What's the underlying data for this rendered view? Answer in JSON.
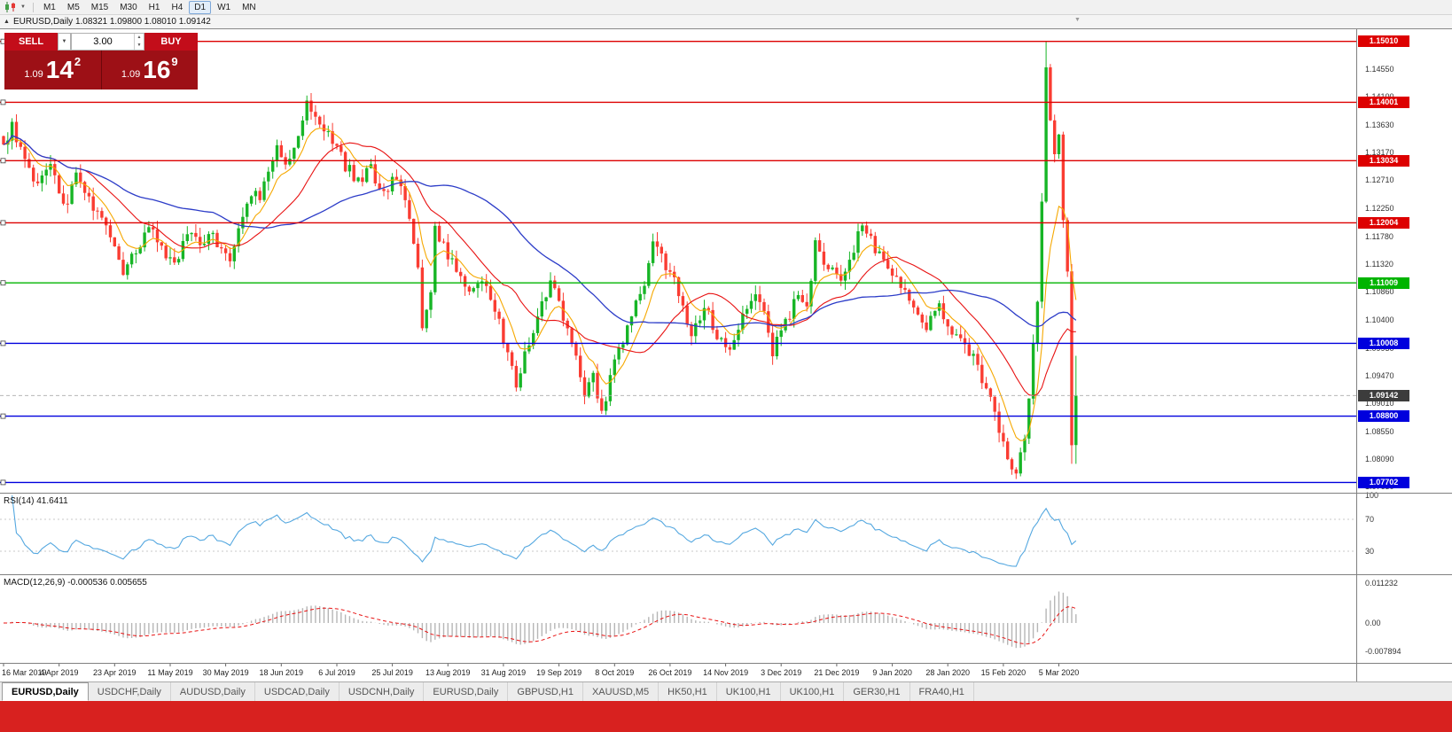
{
  "toolbar": {
    "timeframes": [
      {
        "label": "M1",
        "active": false
      },
      {
        "label": "M5",
        "active": false
      },
      {
        "label": "M15",
        "active": false
      },
      {
        "label": "M30",
        "active": false
      },
      {
        "label": "H1",
        "active": false
      },
      {
        "label": "H4",
        "active": false
      },
      {
        "label": "D1",
        "active": true
      },
      {
        "label": "W1",
        "active": false
      },
      {
        "label": "MN",
        "active": false
      }
    ]
  },
  "window_title": "EURUSD,Daily 1.08321 1.09800 1.08010 1.09142",
  "trade_panel": {
    "sell_label": "SELL",
    "buy_label": "BUY",
    "volume": "3.00",
    "sell_price_prefix": "1.09",
    "sell_price_big": "14",
    "sell_price_sup": "2",
    "buy_price_prefix": "1.09",
    "buy_price_big": "16",
    "buy_price_sup": "9",
    "panel_color": "#9d1016",
    "button_color": "#c30d1a"
  },
  "chart_data": {
    "type": "candlestick",
    "symbol": "EURUSD",
    "timeframe": "Daily",
    "ohlc": {
      "open": "1.08321",
      "high": "1.09800",
      "low": "1.08010",
      "close": "1.09142"
    },
    "price_axis": {
      "top": 1.15211,
      "bottom": 1.07532,
      "ticks": [
        "1.14550",
        "1.14100",
        "1.13630",
        "1.13170",
        "1.12710",
        "1.12250",
        "1.11780",
        "1.11320",
        "1.10860",
        "1.10400",
        "1.09930",
        "1.09470",
        "1.09010",
        "1.08550",
        "1.08090",
        "1.07630"
      ]
    },
    "hlines": [
      {
        "price": 1.1501,
        "label": "1.15010",
        "color": "#dd0000"
      },
      {
        "price": 1.14001,
        "label": "1.14001",
        "color": "#dd0000"
      },
      {
        "price": 1.13034,
        "label": "1.13034",
        "color": "#dd0000"
      },
      {
        "price": 1.12004,
        "label": "1.12004",
        "color": "#dd0000"
      },
      {
        "price": 1.11009,
        "label": "1.11009",
        "color": "#00b400"
      },
      {
        "price": 1.10008,
        "label": "1.10008",
        "color": "#0000dd"
      },
      {
        "price": 1.088,
        "label": "1.08800",
        "color": "#0000dd"
      },
      {
        "price": 1.07702,
        "label": "1.07702",
        "color": "#0000dd"
      }
    ],
    "bid_line": {
      "price": 1.09142,
      "label": "1.09142",
      "color": "#3c3c3c"
    },
    "candle_count": 252,
    "close_waypoints": [
      [
        0,
        1.133
      ],
      [
        2,
        1.1358
      ],
      [
        5,
        1.13
      ],
      [
        8,
        1.1262
      ],
      [
        11,
        1.1295
      ],
      [
        14,
        1.1222
      ],
      [
        17,
        1.128
      ],
      [
        20,
        1.1245
      ],
      [
        23,
        1.12
      ],
      [
        26,
        1.116
      ],
      [
        28,
        1.112
      ],
      [
        31,
        1.1152
      ],
      [
        34,
        1.1192
      ],
      [
        37,
        1.1158
      ],
      [
        40,
        1.1136
      ],
      [
        43,
        1.118
      ],
      [
        46,
        1.116
      ],
      [
        49,
        1.118
      ],
      [
        53,
        1.1135
      ],
      [
        56,
        1.1205
      ],
      [
        58,
        1.1255
      ],
      [
        60,
        1.1235
      ],
      [
        62,
        1.129
      ],
      [
        64,
        1.1335
      ],
      [
        66,
        1.1295
      ],
      [
        69,
        1.134
      ],
      [
        71,
        1.1395
      ],
      [
        74,
        1.137
      ],
      [
        77,
        1.1335
      ],
      [
        80,
        1.1295
      ],
      [
        83,
        1.127
      ],
      [
        86,
        1.1288
      ],
      [
        89,
        1.1245
      ],
      [
        92,
        1.1278
      ],
      [
        95,
        1.1215
      ],
      [
        97,
        1.112
      ],
      [
        98,
        1.1035
      ],
      [
        100,
        1.108
      ],
      [
        101,
        1.1185
      ],
      [
        103,
        1.116
      ],
      [
        106,
        1.1125
      ],
      [
        109,
        1.1092
      ],
      [
        112,
        1.1108
      ],
      [
        115,
        1.1052
      ],
      [
        118,
        1.099
      ],
      [
        120,
        1.0928
      ],
      [
        122,
        1.0985
      ],
      [
        125,
        1.104
      ],
      [
        128,
        1.1105
      ],
      [
        131,
        1.1042
      ],
      [
        134,
        1.099
      ],
      [
        136,
        1.092
      ],
      [
        138,
        1.095
      ],
      [
        140,
        1.0885
      ],
      [
        142,
        1.0945
      ],
      [
        145,
        1.1005
      ],
      [
        148,
        1.1062
      ],
      [
        150,
        1.1102
      ],
      [
        152,
        1.1162
      ],
      [
        155,
        1.113
      ],
      [
        158,
        1.1085
      ],
      [
        161,
        1.1012
      ],
      [
        164,
        1.1062
      ],
      [
        167,
        1.1015
      ],
      [
        170,
        1.0992
      ],
      [
        173,
        1.1042
      ],
      [
        176,
        1.1078
      ],
      [
        178,
        1.1062
      ],
      [
        180,
        1.0988
      ],
      [
        183,
        1.1035
      ],
      [
        186,
        1.1078
      ],
      [
        188,
        1.1058
      ],
      [
        190,
        1.1168
      ],
      [
        193,
        1.1128
      ],
      [
        196,
        1.1112
      ],
      [
        199,
        1.115
      ],
      [
        201,
        1.1205
      ],
      [
        204,
        1.116
      ],
      [
        207,
        1.112
      ],
      [
        210,
        1.1092
      ],
      [
        213,
        1.106
      ],
      [
        216,
        1.1032
      ],
      [
        219,
        1.106
      ],
      [
        221,
        1.1022
      ],
      [
        224,
        1.1
      ],
      [
        227,
        1.098
      ],
      [
        230,
        1.0925
      ],
      [
        233,
        1.0862
      ],
      [
        235,
        1.081
      ],
      [
        237,
        1.0786
      ],
      [
        239,
        1.0845
      ],
      [
        240,
        1.0912
      ],
      [
        241,
        1.099
      ],
      [
        242,
        1.108
      ],
      [
        243,
        1.124
      ],
      [
        244,
        1.146
      ],
      [
        245,
        1.138
      ],
      [
        246,
        1.131
      ],
      [
        247,
        1.1345
      ],
      [
        248,
        1.1195
      ],
      [
        249,
        1.113
      ],
      [
        250,
        1.112
      ],
      [
        251,
        1.0914
      ]
    ],
    "last_two_candles": [
      {
        "o": 1.112,
        "h": 1.1132,
        "l": 1.0801,
        "c": 1.0832
      },
      {
        "o": 1.08321,
        "h": 1.098,
        "l": 1.0801,
        "c": 1.09142
      }
    ],
    "spike_high": 1.1501,
    "colors": {
      "up": "#17b526",
      "down": "#fa3c32",
      "ma_fast": "#f6a800",
      "ma_mid": "#e81212",
      "ma_slow": "#2c3cc8"
    },
    "ma_periods": {
      "fast": 8,
      "mid": 20,
      "slow": 50
    },
    "x_labels": [
      "16 Mar 2019",
      "4 Apr 2019",
      "23 Apr 2019",
      "11 May 2019",
      "30 May 2019",
      "18 Jun 2019",
      "6 Jul 2019",
      "25 Jul 2019",
      "13 Aug 2019",
      "31 Aug 2019",
      "19 Sep 2019",
      "8 Oct 2019",
      "26 Oct 2019",
      "14 Nov 2019",
      "3 Dec 2019",
      "21 Dec 2019",
      "9 Jan 2020",
      "28 Jan 2020",
      "15 Feb 2020",
      "5 Mar 2020"
    ],
    "x_label_step": 13,
    "rsi": {
      "label": "RSI(14) 41.6411",
      "period": 14,
      "scale": [
        "100",
        "70",
        "30"
      ],
      "levels": [
        70,
        30
      ],
      "color": "#55a8e0"
    },
    "macd": {
      "label": "MACD(12,26,9) -0.000536 0.005655",
      "fast": 12,
      "slow": 26,
      "signal": 9,
      "scale": [
        "0.011232",
        "0.00",
        "-0.007894"
      ],
      "hist_color": "#b6b6b6",
      "signal_color": "#e81212"
    }
  },
  "tabs": [
    {
      "label": "EURUSD,Daily",
      "active": true
    },
    {
      "label": "USDCHF,Daily",
      "active": false
    },
    {
      "label": "AUDUSD,Daily",
      "active": false
    },
    {
      "label": "USDCAD,Daily",
      "active": false
    },
    {
      "label": "USDCNH,Daily",
      "active": false
    },
    {
      "label": "EURUSD,Daily",
      "active": false
    },
    {
      "label": "GBPUSD,H1",
      "active": false
    },
    {
      "label": "XAUUSD,M5",
      "active": false
    },
    {
      "label": "HK50,H1",
      "active": false
    },
    {
      "label": "UK100,H1",
      "active": false
    },
    {
      "label": "UK100,H1",
      "active": false
    },
    {
      "label": "GER30,H1",
      "active": false
    },
    {
      "label": "FRA40,H1",
      "active": false
    }
  ],
  "taskbar": {
    "color": "#d8211f"
  }
}
